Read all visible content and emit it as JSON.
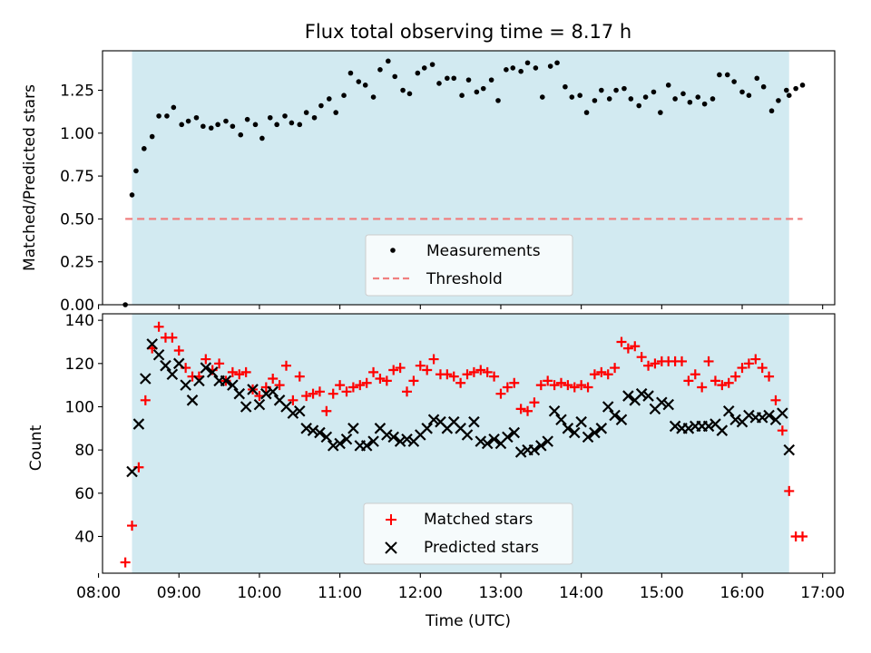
{
  "figure": {
    "title": "Flux total observing time = 8.17 h",
    "xlabel": "Time (UTC)"
  },
  "colors": {
    "observing_window": "#add8e6",
    "measurements": "#000000",
    "threshold": "#f08080",
    "matched": "#ff0000",
    "predicted": "#000000"
  },
  "chart_data": [
    {
      "type": "scatter",
      "panel": "top",
      "title": "Flux total observing time = 8.17 h",
      "ylabel": "Matched/Predicted stars",
      "xlabel": "",
      "x_unit": "hours UTC",
      "xlim": [
        8.05,
        17.15
      ],
      "ylim": [
        0,
        1.48
      ],
      "yticks": [
        "0.00",
        "0.25",
        "0.50",
        "0.75",
        "1.00",
        "1.25"
      ],
      "ytick_values": [
        0,
        0.25,
        0.5,
        0.75,
        1.0,
        1.25
      ],
      "grid": false,
      "legend_position": "lower center",
      "observing_window": [
        "08:25",
        "16:35"
      ],
      "threshold": {
        "name": "Threshold",
        "value": 0.5,
        "x_range": [
          "08:20",
          "16:45"
        ]
      },
      "series": [
        {
          "name": "Measurements",
          "marker": "dot",
          "x": [
            "08:20",
            "08:25",
            "08:28",
            "08:34",
            "08:40",
            "08:45",
            "08:51",
            "08:56",
            "09:02",
            "09:07",
            "09:13",
            "09:18",
            "09:24",
            "09:29",
            "09:35",
            "09:40",
            "09:46",
            "09:51",
            "09:57",
            "10:02",
            "10:08",
            "10:13",
            "10:19",
            "10:24",
            "10:30",
            "10:35",
            "10:41",
            "10:46",
            "10:52",
            "10:57",
            "11:03",
            "11:08",
            "11:14",
            "11:19",
            "11:25",
            "11:30",
            "11:36",
            "11:41",
            "11:47",
            "11:52",
            "11:58",
            "12:03",
            "12:09",
            "12:14",
            "12:20",
            "12:25",
            "12:31",
            "12:36",
            "12:42",
            "12:47",
            "12:53",
            "12:58",
            "13:04",
            "13:09",
            "13:15",
            "13:20",
            "13:26",
            "13:31",
            "13:37",
            "13:42",
            "13:48",
            "13:53",
            "13:59",
            "14:04",
            "14:10",
            "14:15",
            "14:21",
            "14:26",
            "14:32",
            "14:37",
            "14:43",
            "14:48",
            "14:54",
            "14:59",
            "15:05",
            "15:10",
            "15:16",
            "15:21",
            "15:27",
            "15:32",
            "15:38",
            "15:43",
            "15:49",
            "15:54",
            "16:00",
            "16:05",
            "16:11",
            "16:16",
            "16:22",
            "16:27",
            "16:33",
            "16:35",
            "16:40",
            "16:45"
          ],
          "y": [
            0.0,
            0.64,
            0.78,
            0.91,
            0.98,
            1.1,
            1.1,
            1.15,
            1.05,
            1.07,
            1.09,
            1.04,
            1.03,
            1.05,
            1.07,
            1.04,
            0.99,
            1.08,
            1.05,
            0.97,
            1.09,
            1.05,
            1.1,
            1.06,
            1.05,
            1.12,
            1.09,
            1.16,
            1.2,
            1.12,
            1.22,
            1.35,
            1.3,
            1.28,
            1.21,
            1.37,
            1.42,
            1.33,
            1.25,
            1.23,
            1.35,
            1.38,
            1.4,
            1.29,
            1.32,
            1.32,
            1.22,
            1.31,
            1.24,
            1.26,
            1.31,
            1.19,
            1.37,
            1.38,
            1.36,
            1.41,
            1.38,
            1.21,
            1.39,
            1.41,
            1.27,
            1.21,
            1.22,
            1.12,
            1.19,
            1.25,
            1.2,
            1.25,
            1.26,
            1.2,
            1.16,
            1.21,
            1.24,
            1.12,
            1.28,
            1.2,
            1.23,
            1.18,
            1.21,
            1.17,
            1.2,
            1.34,
            1.34,
            1.3,
            1.24,
            1.22,
            1.32,
            1.27,
            1.13,
            1.19,
            1.25,
            1.22,
            1.26,
            1.28
          ]
        }
      ]
    },
    {
      "type": "scatter",
      "panel": "bottom",
      "title": "",
      "ylabel": "Count",
      "xlabel": "Time (UTC)",
      "x_unit": "hours UTC",
      "xlim": [
        8.05,
        17.15
      ],
      "ylim": [
        23,
        143
      ],
      "yticks": [
        "40",
        "60",
        "80",
        "100",
        "120",
        "140"
      ],
      "ytick_values": [
        40,
        60,
        80,
        100,
        120,
        140
      ],
      "xticks": [
        "08:00",
        "09:00",
        "10:00",
        "11:00",
        "12:00",
        "13:00",
        "14:00",
        "15:00",
        "16:00",
        "17:00"
      ],
      "grid": false,
      "legend_position": "lower center",
      "observing_window": [
        "08:25",
        "16:35"
      ],
      "series": [
        {
          "name": "Matched stars",
          "marker": "plus",
          "x": [
            "08:20",
            "08:25",
            "08:30",
            "08:35",
            "08:40",
            "08:45",
            "08:50",
            "08:55",
            "09:00",
            "09:05",
            "09:10",
            "09:15",
            "09:20",
            "09:25",
            "09:30",
            "09:35",
            "09:40",
            "09:45",
            "09:50",
            "09:55",
            "10:00",
            "10:05",
            "10:10",
            "10:15",
            "10:20",
            "10:25",
            "10:30",
            "10:35",
            "10:40",
            "10:45",
            "10:50",
            "10:55",
            "11:00",
            "11:05",
            "11:10",
            "11:15",
            "11:20",
            "11:25",
            "11:30",
            "11:35",
            "11:40",
            "11:45",
            "11:50",
            "11:55",
            "12:00",
            "12:05",
            "12:10",
            "12:15",
            "12:20",
            "12:25",
            "12:30",
            "12:35",
            "12:40",
            "12:45",
            "12:50",
            "12:55",
            "13:00",
            "13:05",
            "13:10",
            "13:15",
            "13:20",
            "13:25",
            "13:30",
            "13:35",
            "13:40",
            "13:45",
            "13:50",
            "13:55",
            "14:00",
            "14:05",
            "14:10",
            "14:15",
            "14:20",
            "14:25",
            "14:30",
            "14:35",
            "14:40",
            "14:45",
            "14:50",
            "14:55",
            "15:00",
            "15:05",
            "15:10",
            "15:15",
            "15:20",
            "15:25",
            "15:30",
            "15:35",
            "15:40",
            "15:45",
            "15:50",
            "15:55",
            "16:00",
            "16:05",
            "16:10",
            "16:15",
            "16:20",
            "16:25",
            "16:30",
            "16:35",
            "16:40",
            "16:45"
          ],
          "y": [
            28,
            45,
            72,
            103,
            127,
            137,
            132,
            132,
            126,
            118,
            114,
            114,
            122,
            117,
            120,
            112,
            116,
            115,
            116,
            108,
            105,
            109,
            113,
            110,
            119,
            103,
            114,
            105,
            106,
            107,
            98,
            106,
            110,
            107,
            109,
            110,
            111,
            116,
            113,
            112,
            117,
            118,
            107,
            112,
            119,
            117,
            122,
            115,
            115,
            114,
            111,
            115,
            116,
            117,
            116,
            114,
            106,
            109,
            111,
            99,
            98,
            102,
            110,
            112,
            110,
            111,
            110,
            109,
            110,
            109,
            115,
            116,
            115,
            118,
            130,
            127,
            128,
            123,
            119,
            120,
            121,
            121,
            121,
            121,
            112,
            115,
            109,
            121,
            112,
            110,
            111,
            114,
            118,
            120,
            122,
            118,
            114,
            103,
            89,
            61,
            40,
            40
          ]
        },
        {
          "name": "Predicted stars",
          "marker": "x",
          "x": [
            "08:25",
            "08:30",
            "08:35",
            "08:40",
            "08:45",
            "08:50",
            "08:55",
            "09:00",
            "09:05",
            "09:10",
            "09:15",
            "09:20",
            "09:25",
            "09:30",
            "09:35",
            "09:40",
            "09:45",
            "09:50",
            "09:55",
            "10:00",
            "10:05",
            "10:10",
            "10:15",
            "10:20",
            "10:25",
            "10:30",
            "10:35",
            "10:40",
            "10:45",
            "10:50",
            "10:55",
            "11:00",
            "11:05",
            "11:10",
            "11:15",
            "11:20",
            "11:25",
            "11:30",
            "11:35",
            "11:40",
            "11:45",
            "11:50",
            "11:55",
            "12:00",
            "12:05",
            "12:10",
            "12:15",
            "12:20",
            "12:25",
            "12:30",
            "12:35",
            "12:40",
            "12:45",
            "12:50",
            "12:55",
            "13:00",
            "13:05",
            "13:10",
            "13:15",
            "13:20",
            "13:25",
            "13:30",
            "13:35",
            "13:40",
            "13:45",
            "13:50",
            "13:55",
            "14:00",
            "14:05",
            "14:10",
            "14:15",
            "14:20",
            "14:25",
            "14:30",
            "14:35",
            "14:40",
            "14:45",
            "14:50",
            "14:55",
            "15:00",
            "15:05",
            "15:10",
            "15:15",
            "15:20",
            "15:25",
            "15:30",
            "15:35",
            "15:40",
            "15:45",
            "15:50",
            "15:55",
            "16:00",
            "16:05",
            "16:10",
            "16:15",
            "16:20",
            "16:25",
            "16:30",
            "16:35"
          ],
          "y": [
            70,
            92,
            113,
            129,
            124,
            119,
            115,
            120,
            110,
            103,
            112,
            118,
            116,
            112,
            112,
            110,
            106,
            100,
            108,
            101,
            106,
            107,
            103,
            100,
            97,
            98,
            90,
            89,
            88,
            86,
            82,
            83,
            85,
            90,
            82,
            82,
            84,
            90,
            87,
            86,
            84,
            85,
            84,
            87,
            90,
            94,
            93,
            90,
            93,
            90,
            87,
            93,
            84,
            83,
            85,
            83,
            86,
            88,
            79,
            80,
            80,
            82,
            84,
            98,
            94,
            90,
            88,
            93,
            86,
            88,
            90,
            100,
            96,
            94,
            105,
            103,
            106,
            105,
            99,
            102,
            101,
            91,
            90,
            90,
            91,
            91,
            91,
            92,
            89,
            98,
            94,
            93,
            96,
            95,
            95,
            96,
            94,
            97,
            80
          ]
        }
      ]
    }
  ]
}
